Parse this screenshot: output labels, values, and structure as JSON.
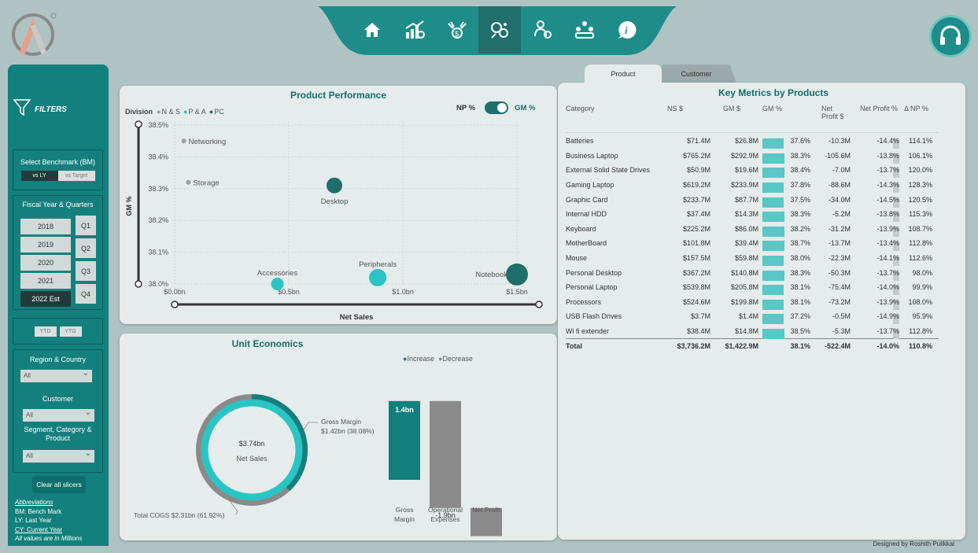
{
  "nav": {
    "icons": [
      "home-icon",
      "growth-chart-icon",
      "finance-icon",
      "product-icon",
      "customer-icon",
      "team-icon",
      "info-icon"
    ],
    "active_index": 3,
    "support_icon": "headset-icon"
  },
  "sidebar": {
    "filters_label": "FILTERS",
    "benchmark": {
      "label": "Select Benchmark (BM)",
      "options": [
        "vs LY",
        "vs Target"
      ],
      "selected": "vs LY"
    },
    "fiscal": {
      "label": "Fiscal Year & Quarters",
      "years": [
        "2018",
        "2019",
        "2020",
        "2021",
        "2022 Est"
      ],
      "selected_year": "2022 Est",
      "quarters": [
        "Q1",
        "Q2",
        "Q3",
        "Q4"
      ]
    },
    "period": {
      "options": [
        "YTD",
        "YTG"
      ]
    },
    "region": {
      "label": "Region & Country",
      "value": "All"
    },
    "customer": {
      "label": "Customer",
      "value": "All"
    },
    "segment": {
      "label_line1": "Segment, Category &",
      "label_line2": "Product",
      "value": "All"
    },
    "clear_label": "Clear all slicers",
    "abbreviations": {
      "title": "Abbreviations",
      "bm": "BM: Bench Mark",
      "ly": "LY: Last Year",
      "cy": "CY: Current Year",
      "note": "All values are in Millions"
    }
  },
  "tabs": {
    "product": "Product",
    "customer": "Customer",
    "active": "Product"
  },
  "product_performance": {
    "title": "Product Performance",
    "legend_title": "Division",
    "legend": [
      {
        "name": "N & S",
        "color": "#a0a0a0"
      },
      {
        "name": "P & A",
        "color": "#2bc4c4"
      },
      {
        "name": "PC",
        "color": "#1e6f6c"
      }
    ],
    "toggle_left": "NP %",
    "toggle_right": "GM %",
    "y_axis_label": "GM %",
    "x_axis_label": "Net Sales"
  },
  "unit_economics": {
    "title": "Unit Economics",
    "center_value": "$3.74bn",
    "center_label": "Net Sales",
    "gm_callout_line1": "Gross Margin",
    "gm_callout_line2": "$1.42bn (38.08%)",
    "cogs_callout": "Total COGS $2.31bn (61.92%)",
    "legend_increase": "Increase",
    "legend_decrease": "Decrease",
    "increase_color": "#12807d",
    "decrease_color": "#8a8a8a"
  },
  "key_metrics": {
    "title": "Key Metrics by Products",
    "headers": [
      "Category",
      "NS $",
      "GM $",
      "GM %",
      "Net Profit $",
      "Net Profit %",
      "Δ NP %"
    ],
    "rows": [
      [
        "Batteries",
        "$71.4M",
        "$26.8M",
        "37.6%",
        "-10.3M",
        "-14.4%",
        "114.1%"
      ],
      [
        "Business Laptop",
        "$765.2M",
        "$292.9M",
        "38.3%",
        "-105.6M",
        "-13.8%",
        "106.1%"
      ],
      [
        "External Solid State Drives",
        "$50.9M",
        "$19.6M",
        "38.4%",
        "-7.0M",
        "-13.7%",
        "120.0%"
      ],
      [
        "Gaming Laptop",
        "$619.2M",
        "$233.9M",
        "37.8%",
        "-88.6M",
        "-14.3%",
        "128.3%"
      ],
      [
        "Graphic Card",
        "$233.7M",
        "$87.7M",
        "37.5%",
        "-34.0M",
        "-14.5%",
        "120.5%"
      ],
      [
        "Internal HDD",
        "$37.4M",
        "$14.3M",
        "38.3%",
        "-5.2M",
        "-13.8%",
        "115.3%"
      ],
      [
        "Keyboard",
        "$225.2M",
        "$86.0M",
        "38.2%",
        "-31.2M",
        "-13.9%",
        "108.7%"
      ],
      [
        "MotherBoard",
        "$101.8M",
        "$39.4M",
        "38.7%",
        "-13.7M",
        "-13.4%",
        "112.8%"
      ],
      [
        "Mouse",
        "$157.5M",
        "$59.8M",
        "38.0%",
        "-22.3M",
        "-14.1%",
        "112.6%"
      ],
      [
        "Personal Desktop",
        "$367.2M",
        "$140.8M",
        "38.3%",
        "-50.3M",
        "-13.7%",
        "98.0%"
      ],
      [
        "Personal Laptop",
        "$539.8M",
        "$205.8M",
        "38.1%",
        "-75.4M",
        "-14.0%",
        "99.9%"
      ],
      [
        "Processors",
        "$524.6M",
        "$199.8M",
        "38.1%",
        "-73.2M",
        "-13.9%",
        "108.0%"
      ],
      [
        "USB Flash Drives",
        "$3.7M",
        "$1.4M",
        "37.2%",
        "-0.5M",
        "-14.9%",
        "95.9%"
      ],
      [
        "Wi fi extender",
        "$38.4M",
        "$14.8M",
        "38.5%",
        "-5.3M",
        "-13.7%",
        "112.8%"
      ]
    ],
    "total": [
      "Total",
      "$3,736.2M",
      "$1,422.9M",
      "38.1%",
      "-522.4M",
      "-14.0%",
      "110.8%"
    ]
  },
  "footer": "Designed by Roshith Pulikkal",
  "chart_data": [
    {
      "type": "scatter",
      "title": "Product Performance",
      "xlabel": "Net Sales",
      "ylabel": "GM %",
      "x_ticks": [
        "$0.0bn",
        "$0.5bn",
        "$1.0bn",
        "$1.5bn"
      ],
      "y_ticks": [
        "38.0%",
        "38.1%",
        "38.2%",
        "38.3%",
        "38.4%",
        "38.5%"
      ],
      "xlim": [
        0,
        1.5
      ],
      "ylim": [
        38.0,
        38.5
      ],
      "points": [
        {
          "label": "Networking",
          "division": "N & S",
          "x": 0.04,
          "y": 38.45
        },
        {
          "label": "Storage",
          "division": "N & S",
          "x": 0.06,
          "y": 38.32
        },
        {
          "label": "Desktop",
          "division": "PC",
          "x": 0.7,
          "y": 38.31
        },
        {
          "label": "Accessories",
          "division": "P & A",
          "x": 0.45,
          "y": 38.0
        },
        {
          "label": "Peripherals",
          "division": "P & A",
          "x": 0.89,
          "y": 38.02
        },
        {
          "label": "Notebook",
          "division": "PC",
          "x": 1.5,
          "y": 38.03
        }
      ]
    },
    {
      "type": "pie",
      "title": "Unit Economics",
      "slices": [
        {
          "name": "Gross Margin",
          "value": 1.42,
          "percent": 38.08
        },
        {
          "name": "Total COGS",
          "value": 2.31,
          "percent": 61.92
        }
      ]
    },
    {
      "type": "bar",
      "subtype": "waterfall",
      "categories": [
        "Gross Margin",
        "Operational Expenses",
        "Net Profit"
      ],
      "values": [
        1.4,
        -1.9,
        -0.5
      ],
      "labels": [
        "1.4bn",
        "-1.9bn",
        "-0.5bn"
      ],
      "series": [
        {
          "name": "Increase"
        },
        {
          "name": "Decrease"
        }
      ]
    }
  ]
}
